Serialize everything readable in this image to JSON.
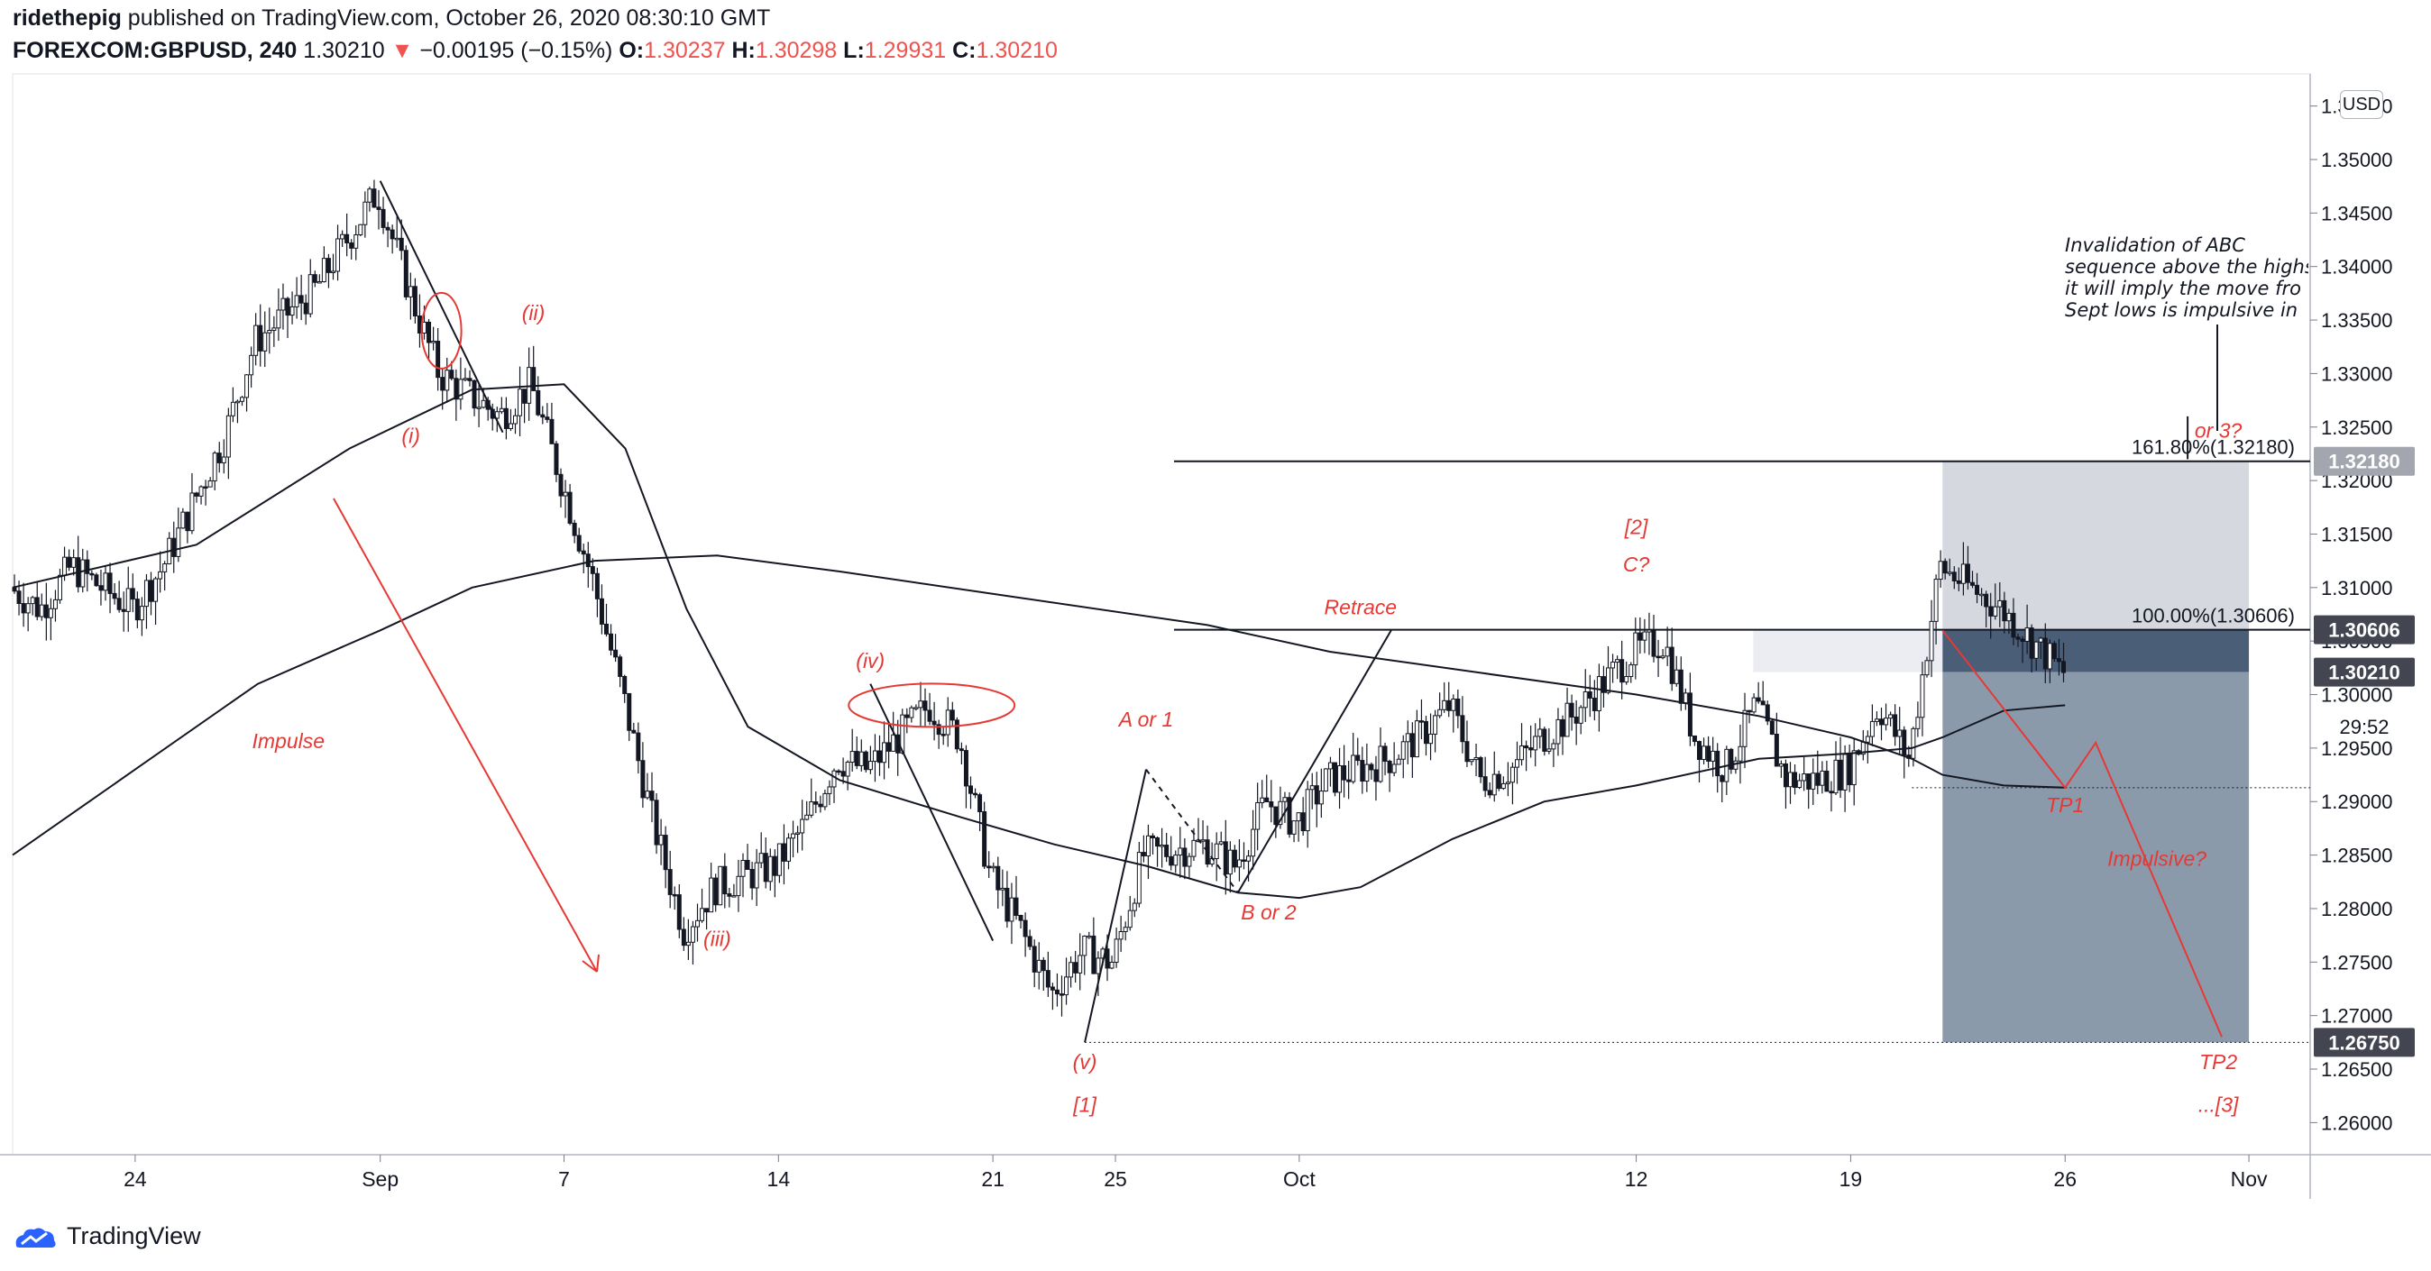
{
  "header": {
    "author": "ridethepig",
    "published_text": "published on TradingView.com, October 26, 2020 08:30:10 GMT",
    "symbol": "FOREXCOM:GBPUSD, 240",
    "last": "1.30210",
    "change": "−0.00195 (−0.15%)",
    "o_label": "O:",
    "o_val": "1.30237",
    "h_label": "H:",
    "h_val": "1.30298",
    "l_label": "L:",
    "l_val": "1.29931",
    "c_label": "C:",
    "c_val": "1.30210"
  },
  "footer": {
    "brand": "TradingView"
  },
  "currency_button": "USD",
  "note": {
    "lines": [
      "Invalidation of ABC",
      "sequence above the highs",
      "it will imply the move fro",
      "Sept lows is impulsive in"
    ]
  },
  "colors": {
    "annotation_red": "#e53935",
    "price_box_dark": "#434651",
    "target_zone_gray": "#d1d4dc",
    "stop_zone_blue": "#8b9aab",
    "entry_zone": "#4a5e78"
  },
  "chart_data": {
    "type": "candlestick",
    "symbol": "FOREXCOM:GBPUSD",
    "interval": "240",
    "ylim": [
      1.257,
      1.358
    ],
    "y_ticks": [
      "1.26000",
      "1.26500",
      "1.27000",
      "1.27500",
      "1.28000",
      "1.28500",
      "1.29000",
      "1.29500",
      "1.30000",
      "1.30500",
      "1.31000",
      "1.31500",
      "1.32000",
      "1.32500",
      "1.33000",
      "1.33500",
      "1.34000",
      "1.34500",
      "1.35000",
      "1.35500"
    ],
    "x_labels": [
      {
        "label": "24",
        "date": "2020-08-24"
      },
      {
        "label": "Sep",
        "date": "2020-09-01"
      },
      {
        "label": "7",
        "date": "2020-09-07"
      },
      {
        "label": "14",
        "date": "2020-09-14"
      },
      {
        "label": "21",
        "date": "2020-09-21"
      },
      {
        "label": "25",
        "date": "2020-09-25"
      },
      {
        "label": "Oct",
        "date": "2020-10-01"
      },
      {
        "label": "12",
        "date": "2020-10-12"
      },
      {
        "label": "19",
        "date": "2020-10-19"
      },
      {
        "label": "26",
        "date": "2020-10-26"
      },
      {
        "label": "Nov",
        "date": "2020-11-01"
      }
    ],
    "price_path": [
      [
        "2020-08-20",
        1.31
      ],
      [
        "2020-08-21",
        1.308
      ],
      [
        "2020-08-22",
        1.312
      ],
      [
        "2020-08-24",
        1.308
      ],
      [
        "2020-08-25",
        1.312
      ],
      [
        "2020-08-26",
        1.318
      ],
      [
        "2020-08-27",
        1.324
      ],
      [
        "2020-08-28",
        1.333
      ],
      [
        "2020-08-30",
        1.338
      ],
      [
        "2020-09-01",
        1.347
      ],
      [
        "2020-09-02",
        1.338
      ],
      [
        "2020-09-03",
        1.33
      ],
      [
        "2020-09-04",
        1.328
      ],
      [
        "2020-09-05",
        1.326
      ],
      [
        "2020-09-06",
        1.329
      ],
      [
        "2020-09-07",
        1.32
      ],
      [
        "2020-09-08",
        1.311
      ],
      [
        "2020-09-09",
        1.3
      ],
      [
        "2020-09-10",
        1.288
      ],
      [
        "2020-09-11",
        1.278
      ],
      [
        "2020-09-12",
        1.282
      ],
      [
        "2020-09-14",
        1.284
      ],
      [
        "2020-09-15",
        1.288
      ],
      [
        "2020-09-16",
        1.294
      ],
      [
        "2020-09-17",
        1.293
      ],
      [
        "2020-09-18",
        1.296
      ],
      [
        "2020-09-19",
        1.299
      ],
      [
        "2020-09-20",
        1.296
      ],
      [
        "2020-09-21",
        1.283
      ],
      [
        "2020-09-22",
        1.278
      ],
      [
        "2020-09-23",
        1.272
      ],
      [
        "2020-09-24",
        1.276
      ],
      [
        "2020-09-25",
        1.275
      ],
      [
        "2020-09-26",
        1.285
      ],
      [
        "2020-09-28",
        1.286
      ],
      [
        "2020-09-29",
        1.284
      ],
      [
        "2020-09-30",
        1.29
      ],
      [
        "2020-10-01",
        1.288
      ],
      [
        "2020-10-02",
        1.292
      ],
      [
        "2020-10-04",
        1.294
      ],
      [
        "2020-10-05",
        1.296
      ],
      [
        "2020-10-06",
        1.299
      ],
      [
        "2020-10-07",
        1.292
      ],
      [
        "2020-10-08",
        1.293
      ],
      [
        "2020-10-09",
        1.296
      ],
      [
        "2020-10-10",
        1.298
      ],
      [
        "2020-10-12",
        1.304
      ],
      [
        "2020-10-13",
        1.305
      ],
      [
        "2020-10-14",
        1.296
      ],
      [
        "2020-10-15",
        1.293
      ],
      [
        "2020-10-16",
        1.299
      ],
      [
        "2020-10-17",
        1.292
      ],
      [
        "2020-10-18",
        1.292
      ],
      [
        "2020-10-19",
        1.293
      ],
      [
        "2020-10-20",
        1.299
      ],
      [
        "2020-10-21",
        1.294
      ],
      [
        "2020-10-22",
        1.312
      ],
      [
        "2020-10-23",
        1.31
      ],
      [
        "2020-10-24",
        1.308
      ],
      [
        "2020-10-26",
        1.3021
      ]
    ],
    "moving_averages": [
      {
        "points": [
          [
            "2020-08-20",
            1.31
          ],
          [
            "2020-08-26",
            1.314
          ],
          [
            "2020-08-31",
            1.323
          ],
          [
            "2020-09-04",
            1.3285
          ],
          [
            "2020-09-07",
            1.329
          ],
          [
            "2020-09-09",
            1.323
          ],
          [
            "2020-09-11",
            1.308
          ],
          [
            "2020-09-13",
            1.297
          ],
          [
            "2020-09-16",
            1.292
          ],
          [
            "2020-09-20",
            1.2885
          ],
          [
            "2020-09-23",
            1.286
          ],
          [
            "2020-09-26",
            1.284
          ],
          [
            "2020-09-29",
            1.2815
          ],
          [
            "2020-10-01",
            1.281
          ],
          [
            "2020-10-03",
            1.282
          ],
          [
            "2020-10-06",
            1.2865
          ],
          [
            "2020-10-09",
            1.29
          ],
          [
            "2020-10-12",
            1.2915
          ],
          [
            "2020-10-16",
            1.294
          ],
          [
            "2020-10-19",
            1.2945
          ],
          [
            "2020-10-21",
            1.295
          ],
          [
            "2020-10-22",
            1.296
          ],
          [
            "2020-10-24",
            1.2985
          ],
          [
            "2020-10-26",
            1.299
          ]
        ]
      },
      {
        "points": [
          [
            "2020-08-20",
            1.285
          ],
          [
            "2020-08-24",
            1.293
          ],
          [
            "2020-08-28",
            1.301
          ],
          [
            "2020-09-01",
            1.306
          ],
          [
            "2020-09-04",
            1.31
          ],
          [
            "2020-09-08",
            1.3125
          ],
          [
            "2020-09-12",
            1.313
          ],
          [
            "2020-09-16",
            1.3115
          ],
          [
            "2020-09-22",
            1.309
          ],
          [
            "2020-09-28",
            1.3065
          ],
          [
            "2020-10-02",
            1.304
          ],
          [
            "2020-10-07",
            1.302
          ],
          [
            "2020-10-12",
            1.3
          ],
          [
            "2020-10-16",
            1.298
          ],
          [
            "2020-10-19",
            1.296
          ],
          [
            "2020-10-21",
            1.294
          ],
          [
            "2020-10-22",
            1.2925
          ],
          [
            "2020-10-24",
            1.2915
          ],
          [
            "2020-10-26",
            1.2913
          ]
        ]
      }
    ],
    "levels": [
      {
        "label": "161.80%(1.32180)",
        "value": 1.3218
      },
      {
        "label": "100.00%(1.30606)",
        "value": 1.30606
      }
    ],
    "price_labels": [
      {
        "label": "1.32180",
        "value": 1.3218,
        "style": "gray"
      },
      {
        "label": "1.30606",
        "value": 1.30606,
        "style": "dark"
      },
      {
        "label": "1.30210",
        "value": 1.3021,
        "style": "dark"
      },
      {
        "label": "29:52",
        "value": 1.297,
        "style": "countdown"
      },
      {
        "label": "1.26750",
        "value": 1.2675,
        "style": "dark"
      }
    ],
    "position": {
      "start": "2020-10-22",
      "end": "2020-11-01",
      "target_high": 1.3218,
      "entry": 1.30606,
      "entry_low": 1.3021,
      "stop_low": 1.2675
    },
    "annotations": [
      {
        "text": "Impulse",
        "date": "2020-08-29",
        "price": 1.295
      },
      {
        "text": "(i)",
        "date": "2020-09-02",
        "price": 1.3235
      },
      {
        "text": "(ii)",
        "date": "2020-09-06",
        "price": 1.335
      },
      {
        "text": "(iii)",
        "date": "2020-09-12",
        "price": 1.2765
      },
      {
        "text": "(iv)",
        "date": "2020-09-17",
        "price": 1.3025
      },
      {
        "text": "(v)",
        "date": "2020-09-24",
        "price": 1.265
      },
      {
        "text": "[1]",
        "date": "2020-09-24",
        "price": 1.261
      },
      {
        "text": "A or 1",
        "date": "2020-09-26",
        "price": 1.297
      },
      {
        "text": "B or 2",
        "date": "2020-09-30",
        "price": 1.279
      },
      {
        "text": "Retrace",
        "date": "2020-10-03",
        "price": 1.3075
      },
      {
        "text": "[2]",
        "date": "2020-10-12",
        "price": 1.315
      },
      {
        "text": "C?",
        "date": "2020-10-12",
        "price": 1.3115
      },
      {
        "text": "TP1",
        "date": "2020-10-26",
        "price": 1.289
      },
      {
        "text": "Impulsive?",
        "date": "2020-10-29",
        "price": 1.284
      },
      {
        "text": "TP2",
        "date": "2020-10-31",
        "price": 1.265
      },
      {
        "text": "...[3]",
        "date": "2020-10-31",
        "price": 1.261
      },
      {
        "text": "or 3?",
        "date": "2020-10-31",
        "price": 1.324
      }
    ]
  }
}
